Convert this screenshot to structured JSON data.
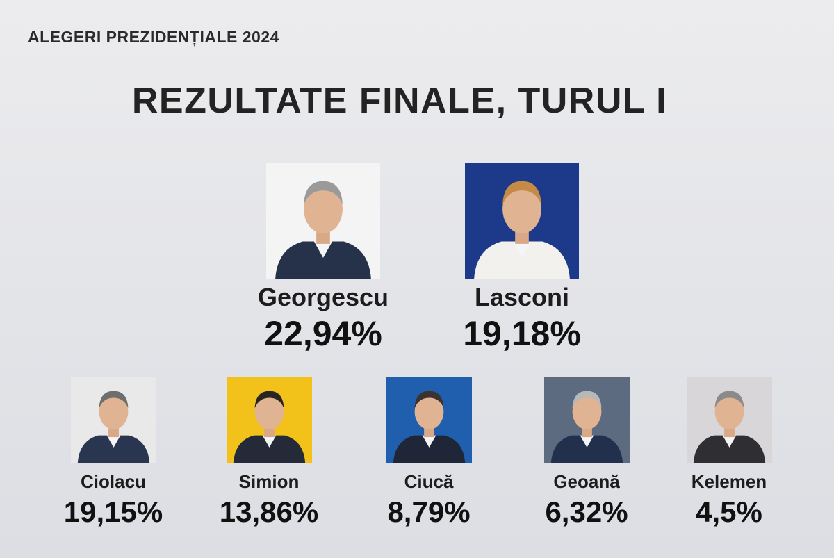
{
  "header": {
    "subtitle": "ALEGERI PREZIDENȚIALE 2024"
  },
  "main": {
    "title": "REZULTATE FINALE, TURUL I"
  },
  "candidates": [
    {
      "name": "Georgescu",
      "percent": "22,94%",
      "photo_bg": "#f4f4f4",
      "suit": "#26324a",
      "hair": "#9a9a9a"
    },
    {
      "name": "Lasconi",
      "percent": "19,18%",
      "photo_bg": "#1d3a8a",
      "suit": "#f3f1ee",
      "hair": "#c58a45"
    },
    {
      "name": "Ciolacu",
      "percent": "19,15%",
      "photo_bg": "#e9e9ea",
      "suit": "#2a3550",
      "hair": "#6e6e6e"
    },
    {
      "name": "Simion",
      "percent": "13,86%",
      "photo_bg": "#f2c21b",
      "suit": "#252a38",
      "hair": "#2a2420"
    },
    {
      "name": "Ciucă",
      "percent": "8,79%",
      "photo_bg": "#1f5fae",
      "suit": "#1e2638",
      "hair": "#3a3330"
    },
    {
      "name": "Geoană",
      "percent": "6,32%",
      "photo_bg": "#5d6b80",
      "suit": "#22304e",
      "hair": "#b8b8b8"
    },
    {
      "name": "Kelemen",
      "percent": "4,5%",
      "photo_bg": "#d8d6d8",
      "suit": "#2e2e33",
      "hair": "#8a8a8a"
    }
  ]
}
